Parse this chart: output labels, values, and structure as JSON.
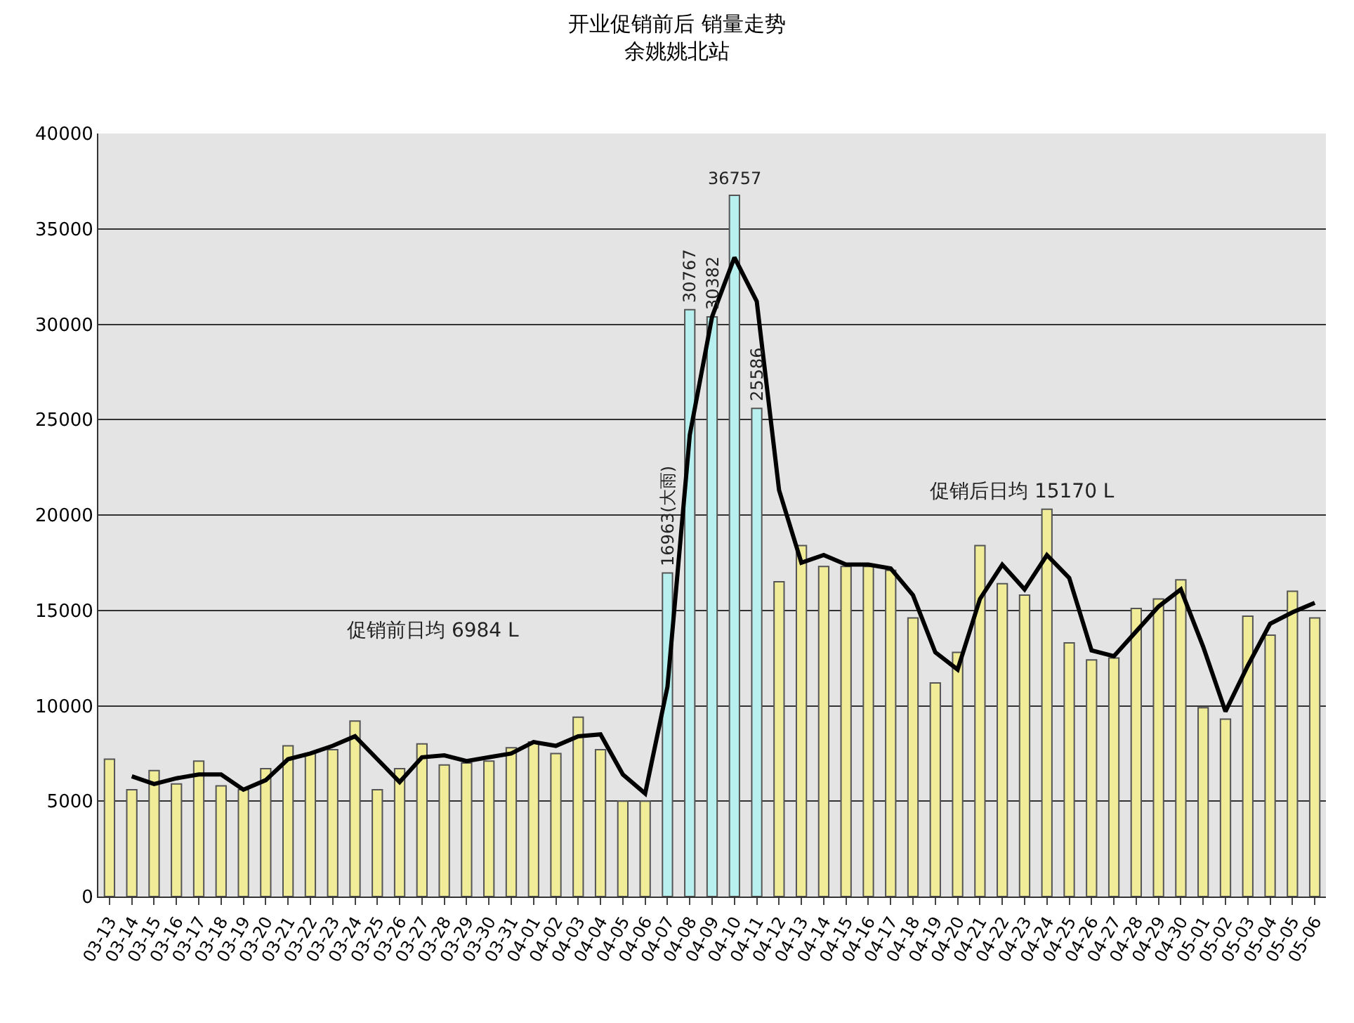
{
  "chart_data": {
    "type": "bar",
    "title": "开业促销前后 销量走势",
    "subtitle": "余姚姚北站",
    "categories": [
      "03-13",
      "03-14",
      "03-15",
      "03-16",
      "03-17",
      "03-18",
      "03-19",
      "03-20",
      "03-21",
      "03-22",
      "03-23",
      "03-24",
      "03-25",
      "03-26",
      "03-27",
      "03-28",
      "03-29",
      "03-30",
      "03-31",
      "04-01",
      "04-02",
      "04-03",
      "04-04",
      "04-05",
      "04-06",
      "04-07",
      "04-08",
      "04-09",
      "04-10",
      "04-11",
      "04-12",
      "04-13",
      "04-14",
      "04-15",
      "04-16",
      "04-17",
      "04-18",
      "04-19",
      "04-20",
      "04-21",
      "04-22",
      "04-23",
      "04-24",
      "04-25",
      "04-26",
      "04-27",
      "04-28",
      "04-29",
      "04-30",
      "05-01",
      "05-02",
      "05-03",
      "05-04",
      "05-05",
      "05-06"
    ],
    "series": [
      {
        "colors": [
          "#f0ec98",
          "#f0ec98",
          "#f0ec98",
          "#f0ec98",
          "#f0ec98",
          "#f0ec98",
          "#f0ec98",
          "#f0ec98",
          "#f0ec98",
          "#f0ec98",
          "#f0ec98",
          "#f0ec98",
          "#f0ec98",
          "#f0ec98",
          "#f0ec98",
          "#f0ec98",
          "#f0ec98",
          "#f0ec98",
          "#f0ec98",
          "#f0ec98",
          "#f0ec98",
          "#f0ec98",
          "#f0ec98",
          "#f0ec98",
          "#f0ec98",
          "#b8f0f0",
          "#b8f0f0",
          "#b8f0f0",
          "#b8f0f0",
          "#b8f0f0",
          "#f0ec98",
          "#f0ec98",
          "#f0ec98",
          "#f0ec98",
          "#f0ec98",
          "#f0ec98",
          "#f0ec98",
          "#f0ec98",
          "#f0ec98",
          "#f0ec98",
          "#f0ec98",
          "#f0ec98",
          "#f0ec98",
          "#f0ec98",
          "#f0ec98",
          "#f0ec98",
          "#f0ec98",
          "#f0ec98",
          "#f0ec98",
          "#f0ec98",
          "#f0ec98",
          "#f0ec98",
          "#f0ec98",
          "#f0ec98",
          "#f0ec98"
        ],
        "values": [
          7200,
          5600,
          6600,
          5900,
          7100,
          5800,
          5600,
          6700,
          7900,
          7500,
          7700,
          9200,
          5600,
          6700,
          8000,
          6900,
          7000,
          7100,
          7800,
          8100,
          7500,
          9400,
          7700,
          5000,
          5000,
          16963,
          30767,
          30382,
          36757,
          25586,
          16500,
          18400,
          17300,
          17300,
          17300,
          17100,
          14600,
          11200,
          12800,
          18400,
          16400,
          15800,
          20300,
          13300,
          12400,
          12500,
          15100,
          15600,
          16600,
          9900,
          9300,
          14700,
          13700,
          16000,
          14600
        ],
        "value_labels": [
          null,
          null,
          null,
          null,
          null,
          null,
          null,
          null,
          null,
          null,
          null,
          null,
          null,
          null,
          null,
          null,
          null,
          null,
          null,
          null,
          null,
          null,
          null,
          null,
          null,
          "16963(大雨)",
          "30767",
          "30382",
          "36757",
          "25586",
          null,
          null,
          null,
          null,
          null,
          null,
          null,
          null,
          null,
          null,
          null,
          null,
          null,
          null,
          null,
          null,
          null,
          null,
          null,
          null,
          null,
          null,
          null,
          null,
          null
        ]
      },
      {
        "type": "line",
        "color": "#000000",
        "values": [
          null,
          6300,
          5900,
          6200,
          6400,
          6400,
          5600,
          6100,
          7200,
          7500,
          7900,
          8400,
          7200,
          6000,
          7300,
          7400,
          7100,
          7300,
          7500,
          8100,
          7900,
          8400,
          8500,
          6400,
          5400,
          11000,
          24200,
          30400,
          33500,
          31200,
          21300,
          17500,
          17900,
          17400,
          17400,
          17200,
          15800,
          12800,
          11900,
          15600,
          17400,
          16100,
          17900,
          16700,
          12900,
          12600,
          13900,
          15200,
          16100,
          13100,
          9700,
          12100,
          14300,
          14900,
          15400
        ]
      }
    ],
    "ylim": [
      0,
      40000
    ],
    "yticks": [
      0,
      5000,
      10000,
      15000,
      20000,
      25000,
      30000,
      35000,
      40000
    ],
    "grid": "y",
    "annotations": [
      "促销前日均 6984 L",
      "促销后日均 15170 L"
    ]
  }
}
